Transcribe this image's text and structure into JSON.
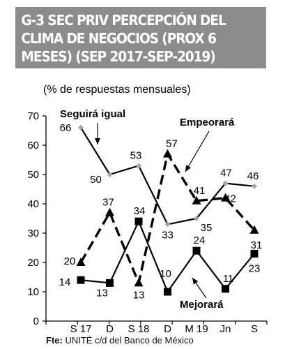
{
  "header": {
    "title_lines": [
      "G-3  SEC PRIV PERCEPCIÓN DEL",
      "CLIMA DE NEGOCIOS (PROX 6",
      "MESES) (SEP 2017-SEP-2019)"
    ]
  },
  "source": {
    "label": "Fte:",
    "text": " UNITÉ c/d del Banco de México"
  },
  "chart_data": {
    "type": "line",
    "subtitle": "(% de respuestas mensuales)",
    "categories": [
      "S 17",
      "D",
      "S 18",
      "D",
      "M 19",
      "Jn",
      "S"
    ],
    "yticks": [
      "0",
      "10",
      "20",
      "30",
      "40",
      "50",
      "60",
      "70"
    ],
    "ylim": [
      0,
      70
    ],
    "grid": false,
    "series": [
      {
        "name": "Seguirá igual",
        "values": [
          66,
          50,
          53,
          33,
          35,
          47,
          46
        ],
        "labels": [
          "66",
          "50",
          "53",
          "33",
          "35",
          "47",
          "46"
        ],
        "style": "solid",
        "marker": "diamond",
        "color": "#000000",
        "marker_color": "#a6a6a6"
      },
      {
        "name": "Empeorará",
        "values": [
          20,
          37,
          13,
          57,
          41,
          42,
          31
        ],
        "labels": [
          "20",
          "37",
          "13",
          "57",
          "41",
          "42",
          "31"
        ],
        "style": "dashed",
        "marker": "triangle",
        "color": "#000000",
        "marker_color": "#000000"
      },
      {
        "name": "Mejorará",
        "values": [
          14,
          13,
          34,
          10,
          24,
          11,
          23
        ],
        "labels": [
          "14",
          "13",
          "34",
          "10",
          "24",
          "11",
          "23"
        ],
        "style": "solid",
        "marker": "square",
        "color": "#000000",
        "marker_color": "#000000"
      }
    ]
  }
}
